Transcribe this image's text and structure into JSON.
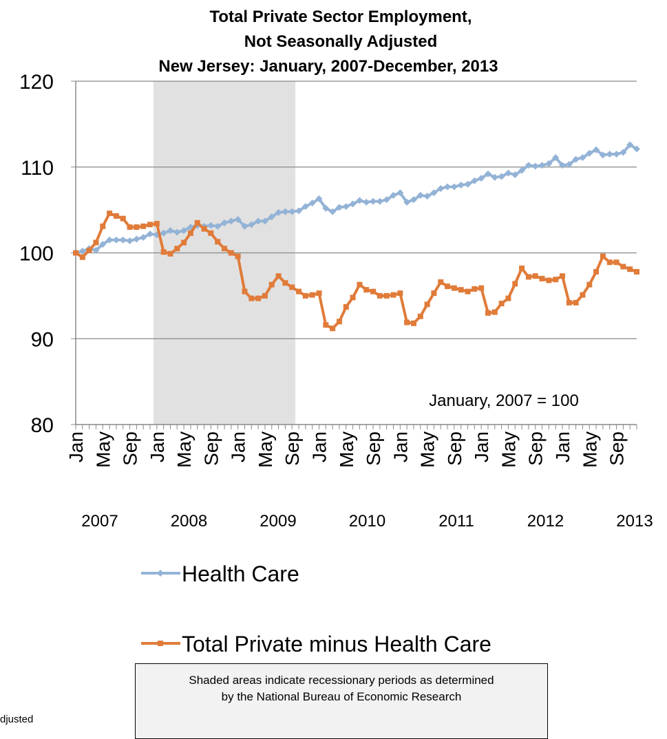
{
  "chart_data": {
    "type": "line",
    "title": [
      "Total Private Sector Employment,",
      "Not Seasonally Adjusted",
      "New Jersey: January, 2007-December, 2013"
    ],
    "categories": [
      "Jan",
      null,
      null,
      null,
      "May",
      null,
      null,
      null,
      "Sep",
      null,
      null,
      null,
      "Jan",
      null,
      null,
      null,
      "May",
      null,
      null,
      null,
      "Sep",
      null,
      null,
      null,
      "Jan",
      null,
      null,
      null,
      "May",
      null,
      null,
      null,
      "Sep",
      null,
      null,
      null,
      "Jan",
      null,
      null,
      null,
      "May",
      null,
      null,
      null,
      "Sep",
      null,
      null,
      null,
      "Jan",
      null,
      null,
      null,
      "May",
      null,
      null,
      null,
      "Sep",
      null,
      null,
      null,
      "Jan",
      null,
      null,
      null,
      "May",
      null,
      null,
      null,
      "Sep",
      null,
      null,
      null,
      "Jan",
      null,
      null,
      null,
      "May",
      null,
      null,
      null,
      "Sep",
      null,
      null,
      null
    ],
    "year_labels": [
      "2007",
      "2008",
      "2009",
      "2010",
      "2011",
      "2012",
      "2013"
    ],
    "ylim": [
      80,
      120
    ],
    "yticks": [
      80,
      90,
      100,
      110,
      120
    ],
    "grid": true,
    "shaded_range": [
      11.5,
      32.5
    ],
    "annotation": "January, 2007 = 100",
    "series": [
      {
        "name": "Health Care",
        "color": "#93b3d6",
        "marker": "diamond",
        "values": [
          100,
          100.2,
          100.5,
          100.3,
          101,
          101.5,
          101.5,
          101.5,
          101.4,
          101.6,
          101.8,
          102.2,
          102.1,
          102.3,
          102.6,
          102.4,
          102.6,
          103,
          103.2,
          103.1,
          103.2,
          103.1,
          103.5,
          103.7,
          103.9,
          103.1,
          103.3,
          103.7,
          103.7,
          104.2,
          104.7,
          104.8,
          104.8,
          104.9,
          105.4,
          105.8,
          106.3,
          105.2,
          104.8,
          105.3,
          105.4,
          105.7,
          106.1,
          105.9,
          106,
          106,
          106.2,
          106.7,
          107,
          105.9,
          106.2,
          106.7,
          106.6,
          107,
          107.5,
          107.7,
          107.7,
          107.9,
          108,
          108.4,
          108.7,
          109.2,
          108.8,
          108.9,
          109.3,
          109.1,
          109.6,
          110.2,
          110.1,
          110.2,
          110.4,
          111.1,
          110.2,
          110.3,
          110.9,
          111.1,
          111.6,
          112,
          111.4,
          111.5,
          111.5,
          111.7,
          112.6,
          112.1
        ]
      },
      {
        "name": "Total Private minus Health Care",
        "color": "#e07b39",
        "marker": "square",
        "values": [
          100,
          99.5,
          100.3,
          101.2,
          103.1,
          104.6,
          104.3,
          104,
          103,
          103,
          103.1,
          103.3,
          103.4,
          100.1,
          99.9,
          100.5,
          101.2,
          102.3,
          103.5,
          102.8,
          102.3,
          101.3,
          100.5,
          100,
          99.6,
          95.5,
          94.7,
          94.7,
          95,
          96.3,
          97.3,
          96.5,
          96,
          95.5,
          95,
          95.1,
          95.3,
          91.6,
          91.2,
          92,
          93.7,
          94.8,
          96.3,
          95.7,
          95.5,
          95,
          95,
          95.1,
          95.3,
          91.9,
          91.8,
          92.6,
          94,
          95.3,
          96.6,
          96.1,
          95.9,
          95.7,
          95.5,
          95.8,
          95.9,
          93,
          93.1,
          94.1,
          94.7,
          96.4,
          98.2,
          97.2,
          97.3,
          97,
          96.8,
          96.9,
          97.3,
          94.2,
          94.2,
          95.1,
          96.3,
          97.8,
          99.6,
          98.9,
          98.9,
          98.4,
          98.1,
          97.8
        ]
      }
    ]
  },
  "footnote": "djusted",
  "note": [
    "Shaded areas indicate recessionary periods as determined",
    "by the National Bureau of Economic Research"
  ]
}
